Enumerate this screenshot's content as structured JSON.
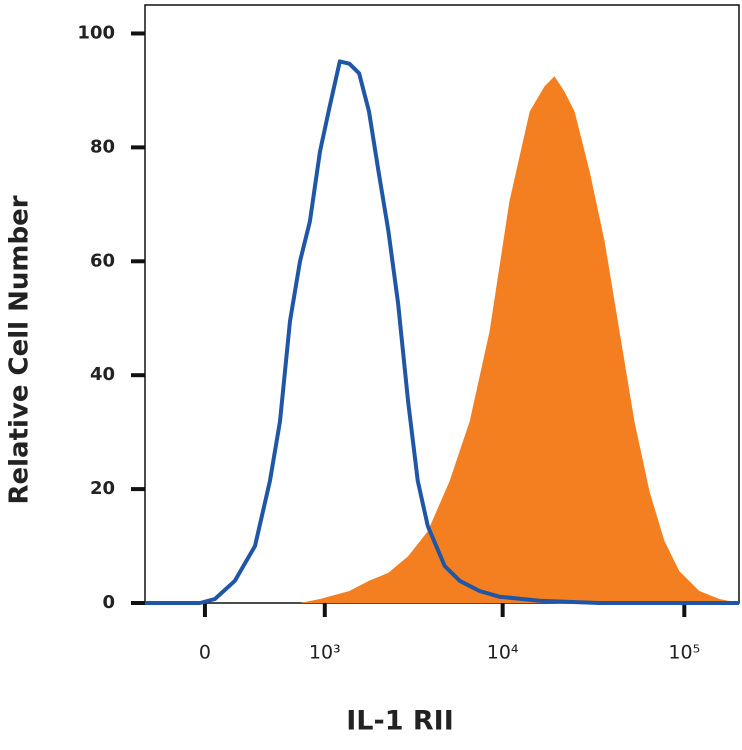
{
  "chart_data": {
    "type": "histogram-overlay",
    "x_label": "IL-1 RII",
    "y_label": "Relative Cell Number",
    "xscale": "biexponential",
    "xlim": [
      -384,
      200000
    ],
    "ylim": [
      0,
      105
    ],
    "xticks": [
      0,
      {
        "value": 1000,
        "label": "10³"
      },
      {
        "value": 10000,
        "label": "10⁴"
      },
      {
        "value": 100000,
        "label": "10⁵"
      }
    ],
    "yticks": [
      0,
      20,
      40,
      60,
      80,
      100
    ],
    "series": [
      {
        "color": "#f47f20",
        "fill": true,
        "x": [
          -384,
          698,
          935,
          1398,
          1810,
          2330,
          3000,
          3860,
          5100,
          6580,
          8470,
          10900,
          14100,
          17000,
          19300,
          21900,
          24900,
          30100,
          36400,
          44000,
          53100,
          64300,
          77700,
          93900,
          121000,
          156000,
          200000
        ],
        "values": [
          0,
          0,
          0.7,
          2.1,
          3.9,
          5.3,
          8.2,
          12.6,
          21.4,
          31.9,
          47.7,
          70.5,
          86.3,
          90.7,
          92.5,
          89.8,
          86.3,
          75.8,
          63.5,
          47.7,
          31.9,
          19.6,
          10.9,
          5.6,
          2.1,
          0.7,
          0
        ]
      },
      {
        "color": "#1f56a5",
        "fill": false,
        "x": [
          -384,
          -29,
          58,
          179,
          312,
          423,
          507,
          598,
          698,
          809,
          935,
          1070,
          1228,
          1398,
          1590,
          1810,
          2050,
          2330,
          2640,
          3000,
          3400,
          3860,
          4790,
          5800,
          7450,
          9600,
          16000,
          34100,
          200000
        ],
        "values": [
          0,
          0,
          0.7,
          3.9,
          10,
          21.4,
          31.9,
          49.5,
          60,
          67,
          79.3,
          87.2,
          95.1,
          94.7,
          93,
          86.3,
          75.8,
          65.3,
          52.6,
          35.4,
          21.4,
          13.5,
          6.5,
          3.9,
          2.1,
          1.1,
          0.4,
          0,
          0
        ]
      }
    ]
  }
}
